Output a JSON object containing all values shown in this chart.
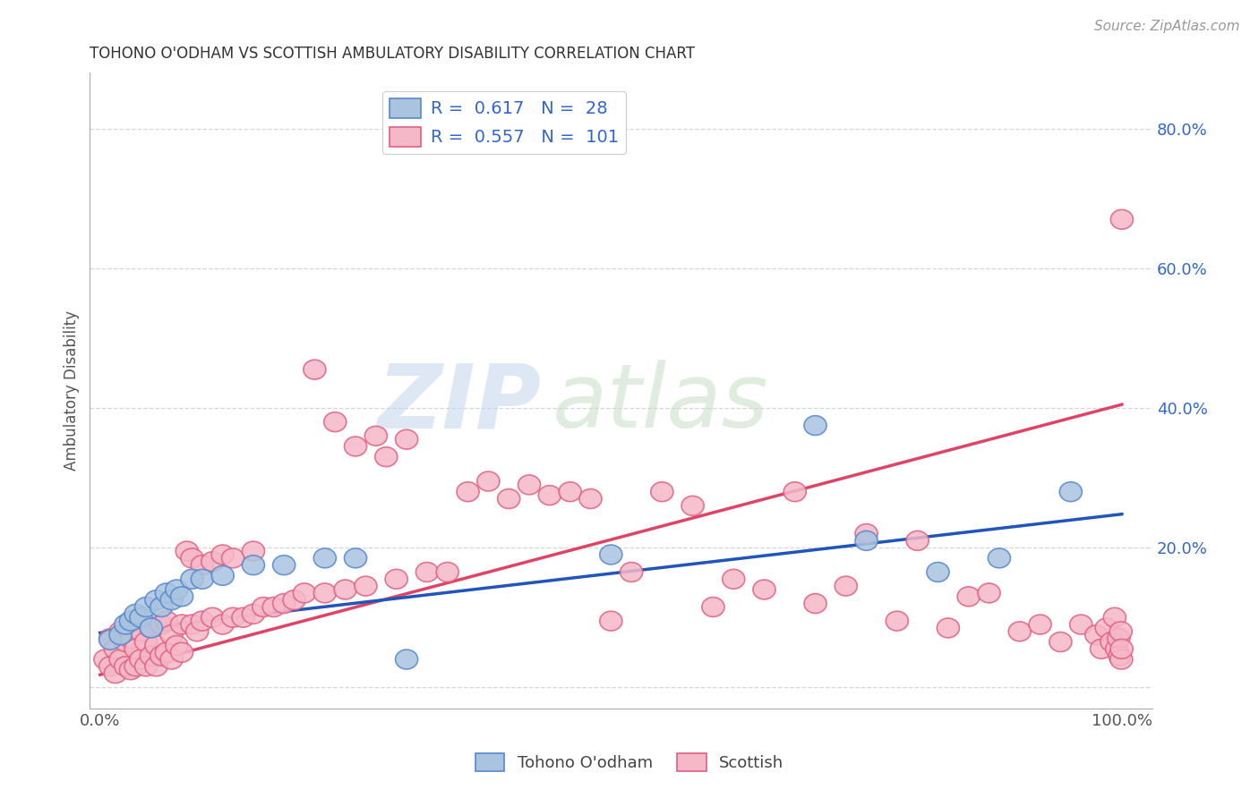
{
  "title": "TOHONO O'ODHAM VS SCOTTISH AMBULATORY DISABILITY CORRELATION CHART",
  "source": "Source: ZipAtlas.com",
  "ylabel": "Ambulatory Disability",
  "xlim": [
    0.0,
    1.0
  ],
  "ylim": [
    -0.03,
    0.88
  ],
  "blue_R": 0.617,
  "blue_N": 28,
  "pink_R": 0.557,
  "pink_N": 101,
  "blue_fill": "#aac4e0",
  "pink_fill": "#f5b8c8",
  "blue_edge": "#5588cc",
  "pink_edge": "#e06080",
  "blue_line_color": "#2255bb",
  "pink_line_color": "#dd4466",
  "legend_label_blue": "Tohono O'odham",
  "legend_label_pink": "Scottish",
  "blue_line_x0": 0.0,
  "blue_line_y0": 0.078,
  "blue_line_x1": 1.0,
  "blue_line_y1": 0.248,
  "pink_line_x0": 0.0,
  "pink_line_y0": 0.018,
  "pink_line_x1": 1.0,
  "pink_line_y1": 0.405,
  "blue_x": [
    0.01,
    0.02,
    0.025,
    0.03,
    0.035,
    0.04,
    0.045,
    0.05,
    0.055,
    0.06,
    0.065,
    0.07,
    0.075,
    0.08,
    0.09,
    0.1,
    0.12,
    0.15,
    0.18,
    0.22,
    0.25,
    0.3,
    0.5,
    0.7,
    0.75,
    0.82,
    0.88,
    0.95
  ],
  "blue_y": [
    0.068,
    0.075,
    0.09,
    0.095,
    0.105,
    0.1,
    0.115,
    0.085,
    0.125,
    0.115,
    0.135,
    0.125,
    0.14,
    0.13,
    0.155,
    0.155,
    0.16,
    0.175,
    0.175,
    0.185,
    0.185,
    0.04,
    0.19,
    0.375,
    0.21,
    0.165,
    0.185,
    0.28
  ],
  "pink_x": [
    0.005,
    0.01,
    0.01,
    0.015,
    0.015,
    0.02,
    0.02,
    0.025,
    0.025,
    0.03,
    0.03,
    0.035,
    0.035,
    0.04,
    0.04,
    0.045,
    0.045,
    0.05,
    0.05,
    0.055,
    0.055,
    0.06,
    0.06,
    0.065,
    0.065,
    0.07,
    0.07,
    0.075,
    0.08,
    0.08,
    0.085,
    0.09,
    0.09,
    0.095,
    0.1,
    0.1,
    0.11,
    0.11,
    0.12,
    0.12,
    0.13,
    0.13,
    0.14,
    0.15,
    0.15,
    0.16,
    0.17,
    0.18,
    0.19,
    0.2,
    0.21,
    0.22,
    0.23,
    0.24,
    0.25,
    0.26,
    0.27,
    0.28,
    0.29,
    0.3,
    0.32,
    0.34,
    0.36,
    0.38,
    0.4,
    0.42,
    0.44,
    0.46,
    0.48,
    0.5,
    0.52,
    0.55,
    0.58,
    0.6,
    0.62,
    0.65,
    0.68,
    0.7,
    0.73,
    0.75,
    0.78,
    0.8,
    0.83,
    0.85,
    0.87,
    0.9,
    0.92,
    0.94,
    0.96,
    0.975,
    0.98,
    0.985,
    0.99,
    0.993,
    0.995,
    0.997,
    0.998,
    0.999,
    0.9995,
    0.9998,
    1.0
  ],
  "pink_y": [
    0.04,
    0.03,
    0.07,
    0.02,
    0.055,
    0.04,
    0.08,
    0.03,
    0.065,
    0.025,
    0.07,
    0.03,
    0.055,
    0.04,
    0.08,
    0.03,
    0.065,
    0.045,
    0.085,
    0.03,
    0.06,
    0.045,
    0.09,
    0.05,
    0.095,
    0.04,
    0.075,
    0.06,
    0.05,
    0.09,
    0.195,
    0.09,
    0.185,
    0.08,
    0.095,
    0.175,
    0.1,
    0.18,
    0.09,
    0.19,
    0.1,
    0.185,
    0.1,
    0.105,
    0.195,
    0.115,
    0.115,
    0.12,
    0.125,
    0.135,
    0.455,
    0.135,
    0.38,
    0.14,
    0.345,
    0.145,
    0.36,
    0.33,
    0.155,
    0.355,
    0.165,
    0.165,
    0.28,
    0.295,
    0.27,
    0.29,
    0.275,
    0.28,
    0.27,
    0.095,
    0.165,
    0.28,
    0.26,
    0.115,
    0.155,
    0.14,
    0.28,
    0.12,
    0.145,
    0.22,
    0.095,
    0.21,
    0.085,
    0.13,
    0.135,
    0.08,
    0.09,
    0.065,
    0.09,
    0.075,
    0.055,
    0.085,
    0.065,
    0.1,
    0.055,
    0.07,
    0.045,
    0.08,
    0.04,
    0.055,
    0.67
  ]
}
